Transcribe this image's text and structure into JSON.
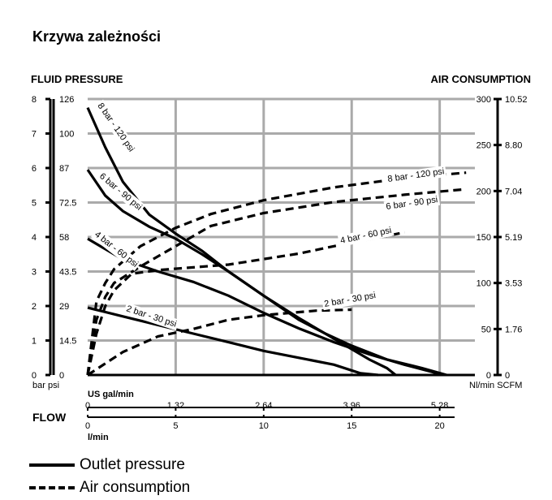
{
  "page_title": "Krzywa zależności",
  "headers": {
    "left": "FLUID PRESSURE",
    "right": "AIR CONSUMPTION"
  },
  "legend": {
    "solid": "Outlet pressure",
    "dashed": "Air consumption"
  },
  "chart_data": {
    "type": "line",
    "title": "",
    "axes": {
      "left_bar": {
        "ticks": [
          "0",
          "1",
          "2",
          "3",
          "4",
          "5",
          "6",
          "7",
          "8"
        ],
        "unit_label": "bar",
        "range": [
          0,
          8
        ]
      },
      "left_psi": {
        "ticks": [
          "0",
          "14.5",
          "29",
          "43.5",
          "58",
          "72.5",
          "87",
          "100",
          "126"
        ],
        "unit_label": "psi"
      },
      "right_nl": {
        "ticks": [
          "0",
          "50",
          "100",
          "150",
          "200",
          "250",
          "300"
        ],
        "unit_label": "Nl/min",
        "range": [
          0,
          300
        ]
      },
      "right_scfm": {
        "ticks": [
          "0",
          "1.76",
          "3.53",
          "5.19",
          "7.04",
          "8.80",
          "10.52"
        ],
        "unit_label": "SCFM"
      },
      "x_gal": {
        "ticks": [
          "0",
          "1.32",
          "2.64",
          "3.96",
          "5.28"
        ],
        "unit_label": "US gal/min"
      },
      "x_lmin": {
        "ticks": [
          "0",
          "5",
          "10",
          "15",
          "20"
        ],
        "unit_label": "l/min",
        "range": [
          0,
          22
        ]
      },
      "flow_label": "FLOW"
    },
    "outlet_pressure": [
      {
        "name": "8 bar - 120 psi",
        "points": [
          [
            0,
            7.75
          ],
          [
            1,
            6.6
          ],
          [
            2,
            5.6
          ],
          [
            3.5,
            4.65
          ],
          [
            5,
            4.1
          ],
          [
            6.5,
            3.6
          ],
          [
            8,
            3.0
          ],
          [
            10,
            2.3
          ],
          [
            12,
            1.6
          ],
          [
            13.5,
            1.2
          ],
          [
            15,
            0.75
          ],
          [
            16,
            0.45
          ],
          [
            17,
            0.2
          ],
          [
            17.5,
            0
          ]
        ]
      },
      {
        "name": "6 bar - 90 psi",
        "points": [
          [
            0,
            5.95
          ],
          [
            1,
            5.2
          ],
          [
            2,
            4.75
          ],
          [
            3.5,
            4.3
          ],
          [
            5,
            3.95
          ],
          [
            6.5,
            3.5
          ],
          [
            8,
            3.0
          ],
          [
            10,
            2.3
          ],
          [
            12,
            1.65
          ],
          [
            13.5,
            1.2
          ],
          [
            15,
            0.85
          ],
          [
            17,
            0.45
          ],
          [
            19,
            0.2
          ],
          [
            20.4,
            0
          ]
        ]
      },
      {
        "name": "4 bar - 60 psi",
        "points": [
          [
            0,
            3.95
          ],
          [
            2,
            3.35
          ],
          [
            4,
            3.0
          ],
          [
            6,
            2.7
          ],
          [
            8,
            2.3
          ],
          [
            10,
            1.8
          ],
          [
            12,
            1.35
          ],
          [
            14,
            0.95
          ],
          [
            16,
            0.6
          ],
          [
            18,
            0.3
          ],
          [
            19.5,
            0.1
          ],
          [
            20.2,
            0
          ]
        ]
      },
      {
        "name": "2 bar - 30 psi",
        "points": [
          [
            0,
            1.95
          ],
          [
            2,
            1.7
          ],
          [
            4,
            1.45
          ],
          [
            6,
            1.2
          ],
          [
            8,
            0.95
          ],
          [
            10,
            0.7
          ],
          [
            12,
            0.5
          ],
          [
            14,
            0.3
          ],
          [
            15.5,
            0.05
          ],
          [
            16.5,
            0
          ]
        ]
      }
    ],
    "air_consumption": [
      {
        "name": "8 bar - 120 psi",
        "points": [
          [
            0,
            0
          ],
          [
            0.5,
            80
          ],
          [
            1,
            100
          ],
          [
            1.5,
            115
          ],
          [
            3,
            140
          ],
          [
            5,
            160
          ],
          [
            7,
            175
          ],
          [
            10,
            190
          ],
          [
            14,
            204
          ],
          [
            18,
            214
          ],
          [
            21.5,
            220
          ]
        ]
      },
      {
        "name": "6 bar - 90 psi",
        "points": [
          [
            0,
            0
          ],
          [
            0.5,
            60
          ],
          [
            1,
            85
          ],
          [
            1.5,
            100
          ],
          [
            3,
            118
          ],
          [
            5,
            140
          ],
          [
            7,
            162
          ],
          [
            10,
            176
          ],
          [
            14,
            188
          ],
          [
            18,
            196
          ],
          [
            21.5,
            202
          ]
        ]
      },
      {
        "name": "4 bar - 60 psi",
        "points": [
          [
            0,
            0
          ],
          [
            0.5,
            45
          ],
          [
            1,
            75
          ],
          [
            1.5,
            92
          ],
          [
            2.5,
            110
          ],
          [
            4,
            114
          ],
          [
            8,
            120
          ],
          [
            12,
            132
          ],
          [
            14,
            140
          ],
          [
            18,
            155
          ]
        ]
      },
      {
        "name": "2 bar - 30 psi",
        "points": [
          [
            0,
            0
          ],
          [
            2,
            25
          ],
          [
            4,
            42
          ],
          [
            6,
            50
          ],
          [
            8,
            60
          ],
          [
            10,
            65
          ],
          [
            13,
            70
          ],
          [
            15,
            71
          ]
        ]
      }
    ]
  }
}
